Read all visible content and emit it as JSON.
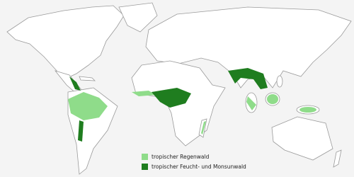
{
  "legend": {
    "items": [
      {
        "label": "tropischer Regenwald",
        "color": "#8fdc8a"
      },
      {
        "label": "tropischer Feucht- und Monsunwald",
        "color": "#1f7d1f"
      }
    ]
  }
}
